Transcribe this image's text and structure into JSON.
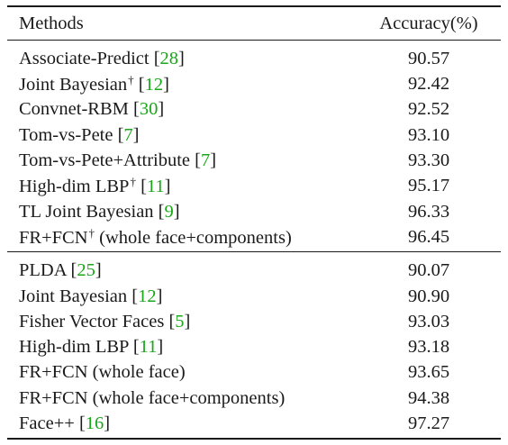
{
  "table": {
    "header": {
      "methods": "Methods",
      "accuracy": "Accuracy(%)"
    },
    "group1": [
      {
        "name": "Associate-Predict",
        "dagger": "",
        "suffix": "",
        "cite": "28",
        "acc": "90.57"
      },
      {
        "name": "Joint Bayesian",
        "dagger": "†",
        "suffix": "",
        "cite": "12",
        "acc": "92.42"
      },
      {
        "name": "Convnet-RBM",
        "dagger": "",
        "suffix": "",
        "cite": "30",
        "acc": "92.52"
      },
      {
        "name": "Tom-vs-Pete",
        "dagger": "",
        "suffix": "",
        "cite": "7",
        "acc": "93.10"
      },
      {
        "name": "Tom-vs-Pete+Attribute",
        "dagger": "",
        "suffix": "",
        "cite": "7",
        "acc": "93.30"
      },
      {
        "name": "High-dim LBP",
        "dagger": "†",
        "suffix": "",
        "cite": "11",
        "acc": "95.17"
      },
      {
        "name": "TL Joint Bayesian",
        "dagger": "",
        "suffix": "",
        "cite": "9",
        "acc": "96.33"
      },
      {
        "name": "FR+FCN",
        "dagger": "†",
        "suffix": "(whole face+components)",
        "cite": "",
        "acc": "96.45"
      }
    ],
    "group2": [
      {
        "name": "PLDA",
        "dagger": "",
        "suffix": "",
        "cite": "25",
        "acc": "90.07"
      },
      {
        "name": "Joint Bayesian",
        "dagger": "",
        "suffix": "",
        "cite": "12",
        "acc": "90.90"
      },
      {
        "name": "Fisher Vector Faces",
        "dagger": "",
        "suffix": "",
        "cite": "5",
        "acc": "93.03"
      },
      {
        "name": "High-dim LBP",
        "dagger": "",
        "suffix": "",
        "cite": "11",
        "acc": "93.18"
      },
      {
        "name": "FR+FCN (whole face)",
        "dagger": "",
        "suffix": "",
        "cite": "",
        "acc": "93.65"
      },
      {
        "name": "FR+FCN (whole face+components)",
        "dagger": "",
        "suffix": "",
        "cite": "",
        "acc": "94.38"
      },
      {
        "name": "Face++",
        "dagger": "",
        "suffix": "",
        "cite": "16",
        "acc": "97.27"
      }
    ]
  }
}
